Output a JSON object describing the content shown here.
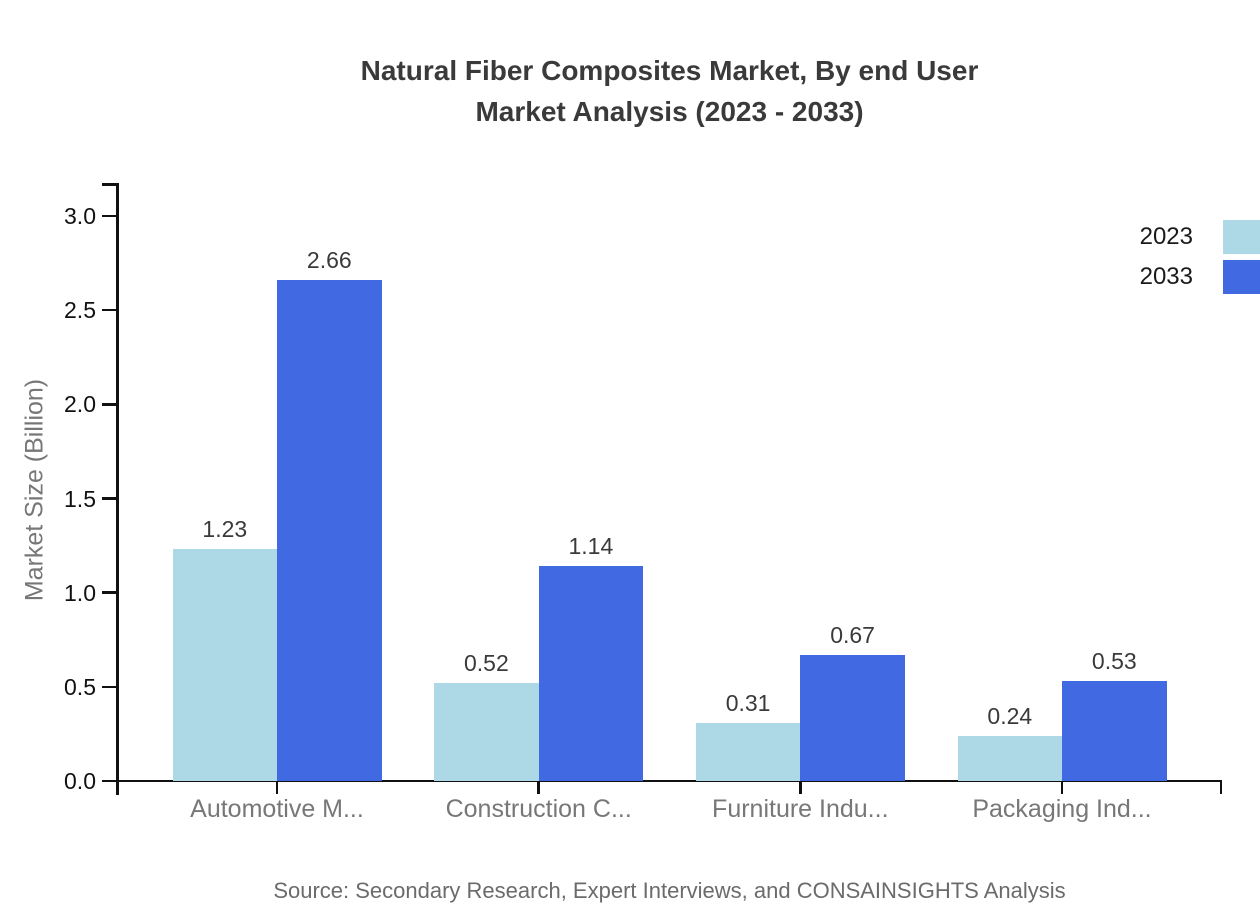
{
  "chart": {
    "title_line1": "Natural Fiber Composites Market, By end User",
    "title_line2": "Market Analysis (2023 - 2033)",
    "source": "Source: Secondary Research, Expert Interviews, and CONSAINSIGHTS Analysis"
  },
  "chart_data": {
    "type": "bar",
    "title": "Natural Fiber Composites Market, By end User Market Analysis (2023 - 2033)",
    "categories": [
      "Automotive M...",
      "Construction C...",
      "Furniture Indu...",
      "Packaging Ind..."
    ],
    "series": [
      {
        "name": "2023",
        "color": "#ADD8E6",
        "values": [
          1.23,
          0.52,
          0.31,
          0.24
        ]
      },
      {
        "name": "2033",
        "color": "#4169E1",
        "values": [
          2.66,
          1.14,
          0.67,
          0.53
        ]
      }
    ],
    "xlabel": "",
    "ylabel": "Market Size (Billion)",
    "ylim": [
      0,
      3.17
    ],
    "yticks": [
      0.0,
      0.5,
      1.0,
      1.5,
      2.0,
      2.5,
      3.0
    ],
    "grid": false,
    "legend_position": "top-right",
    "value_labels": true,
    "axis_color": "#111111",
    "value_label_color": "#3a3a3a",
    "category_label_color": "#777777"
  }
}
